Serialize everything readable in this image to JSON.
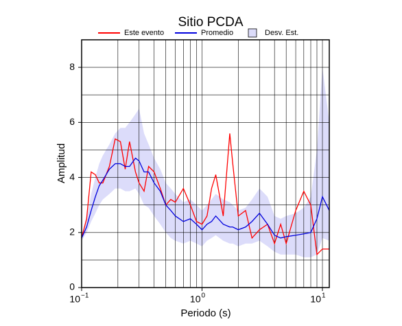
{
  "chart_data": {
    "type": "line",
    "title": "Sitio PCDA",
    "x_label": "Periodo (s)",
    "y_label": "Amplitud",
    "log_x": true,
    "grid": true,
    "xlim": [
      0.1,
      11.4
    ],
    "ylim": [
      0,
      9
    ],
    "xticks": [
      {
        "value": 0.1,
        "label": "10",
        "exponent": "−1"
      },
      {
        "value": 1,
        "label": "10",
        "exponent": "0"
      },
      {
        "value": 10,
        "label": "10",
        "exponent": "1"
      }
    ],
    "xminor": [
      0.2,
      0.3,
      0.4,
      0.5,
      0.6,
      0.7,
      0.8,
      0.9,
      2,
      3,
      4,
      5,
      6,
      7,
      8,
      9
    ],
    "yticks": [
      0,
      2,
      4,
      6,
      8
    ],
    "yminor": [
      1,
      3,
      5,
      7
    ],
    "x": [
      0.1,
      0.11,
      0.12,
      0.13,
      0.14,
      0.15,
      0.17,
      0.19,
      0.21,
      0.23,
      0.25,
      0.28,
      0.3,
      0.33,
      0.36,
      0.4,
      0.45,
      0.5,
      0.55,
      0.6,
      0.7,
      0.8,
      0.9,
      1.0,
      1.1,
      1.2,
      1.3,
      1.5,
      1.7,
      1.8,
      2.0,
      2.3,
      2.6,
      3.0,
      3.5,
      4.0,
      4.5,
      5.0,
      6.0,
      7.0,
      8.0,
      9.0,
      10,
      11.4
    ],
    "series": [
      {
        "name": "Este evento",
        "color": "#ff0000",
        "values": [
          1.8,
          2.5,
          4.2,
          4.1,
          3.8,
          3.8,
          4.4,
          5.4,
          5.3,
          4.3,
          5.3,
          4.2,
          3.8,
          3.5,
          4.4,
          4.2,
          3.6,
          3.0,
          3.2,
          3.1,
          3.6,
          3.0,
          2.4,
          2.3,
          2.6,
          3.6,
          4.1,
          2.6,
          5.6,
          4.5,
          2.6,
          2.8,
          1.8,
          2.1,
          2.3,
          1.6,
          2.3,
          1.6,
          2.8,
          3.5,
          3.0,
          1.2,
          1.4,
          1.4
        ]
      },
      {
        "name": "Promedio",
        "color": "#0000dd",
        "values": [
          1.8,
          2.2,
          2.8,
          3.3,
          3.7,
          3.9,
          4.3,
          4.5,
          4.5,
          4.4,
          4.4,
          4.7,
          4.6,
          4.2,
          4.2,
          3.8,
          3.5,
          3.0,
          2.8,
          2.6,
          2.4,
          2.5,
          2.3,
          2.1,
          2.3,
          2.4,
          2.6,
          2.3,
          2.2,
          2.2,
          2.1,
          2.2,
          2.4,
          2.7,
          2.3,
          1.9,
          1.8,
          1.85,
          1.9,
          1.95,
          2.0,
          2.5,
          3.3,
          2.8
        ]
      },
      {
        "name": "Desv. Est.",
        "color": "#dcdcfa",
        "kind": "band",
        "lower": [
          1.7,
          2.0,
          2.4,
          2.7,
          3.0,
          3.2,
          3.4,
          3.6,
          3.6,
          3.5,
          3.5,
          3.6,
          3.4,
          3.0,
          2.9,
          2.6,
          2.3,
          2.0,
          1.8,
          1.7,
          1.6,
          1.7,
          1.6,
          1.5,
          1.7,
          1.8,
          1.9,
          1.7,
          1.6,
          1.6,
          1.5,
          1.6,
          1.6,
          1.7,
          1.5,
          1.3,
          1.2,
          1.2,
          1.2,
          1.1,
          1.1,
          1.2,
          1.8,
          1.7
        ],
        "upper": [
          1.9,
          2.5,
          3.4,
          4.0,
          4.5,
          4.8,
          5.2,
          5.6,
          5.8,
          5.8,
          6.0,
          6.3,
          6.5,
          5.6,
          5.2,
          4.7,
          4.3,
          3.8,
          3.6,
          3.4,
          3.1,
          3.2,
          3.0,
          2.8,
          3.0,
          3.2,
          3.4,
          3.2,
          3.1,
          3.0,
          2.8,
          2.9,
          3.2,
          3.6,
          3.3,
          2.6,
          2.5,
          2.6,
          2.7,
          2.9,
          3.3,
          5.0,
          8.0,
          6.0
        ]
      }
    ]
  }
}
